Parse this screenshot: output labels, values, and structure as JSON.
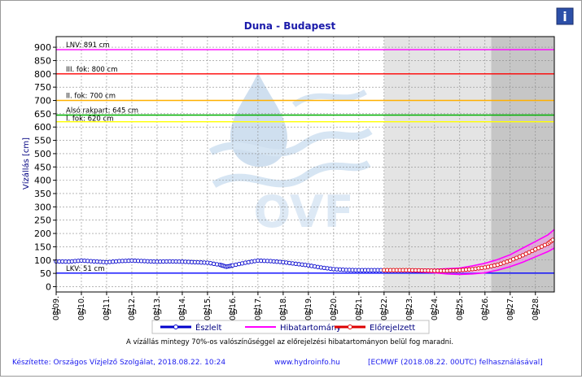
{
  "chart_data": {
    "type": "line",
    "title": "Duna - Budapest",
    "ylabel": "Vízállás [cm]",
    "xlabel": "",
    "ylim": [
      -20,
      940
    ],
    "yticks": [
      0,
      50,
      100,
      150,
      200,
      250,
      300,
      350,
      400,
      450,
      500,
      550,
      600,
      650,
      700,
      750,
      800,
      850,
      900
    ],
    "x_range": [
      0,
      19.75
    ],
    "x_ticks": [
      {
        "date": "08.09.",
        "time": "7h"
      },
      {
        "date": "08.10.",
        "time": "7h"
      },
      {
        "date": "08.11.",
        "time": "7h"
      },
      {
        "date": "08.12.",
        "time": "7h"
      },
      {
        "date": "08.13.",
        "time": "7h"
      },
      {
        "date": "08.14.",
        "time": "7h"
      },
      {
        "date": "08.15.",
        "time": "7h"
      },
      {
        "date": "08.16.",
        "time": "7h"
      },
      {
        "date": "08.17.",
        "time": "7h"
      },
      {
        "date": "08.18.",
        "time": "7h"
      },
      {
        "date": "08.19.",
        "time": "7h"
      },
      {
        "date": "08.20.",
        "time": "7h"
      },
      {
        "date": "08.21.",
        "time": "7h"
      },
      {
        "date": "08.22.",
        "time": "7h"
      },
      {
        "date": "08.23.",
        "time": "7h"
      },
      {
        "date": "08.24.",
        "time": "7h"
      },
      {
        "date": "08.25.",
        "time": "7h"
      },
      {
        "date": "08.26.",
        "time": "7h"
      },
      {
        "date": "08.27.",
        "time": "7h"
      },
      {
        "date": "08.28.",
        "time": "7h"
      }
    ],
    "grid": true,
    "forecast_region_start": 13.0,
    "far_forecast_region_start": 17.25,
    "reference_lines": [
      {
        "label": "LNV: 891 cm",
        "value": 891,
        "color": "#ff00ff"
      },
      {
        "label": "III. fok: 800 cm",
        "value": 800,
        "color": "#ff0000"
      },
      {
        "label": "II. fok: 700 cm",
        "value": 700,
        "color": "#ffb000"
      },
      {
        "label": "Alsó rakpart: 645 cm",
        "value": 645,
        "color": "#00b000"
      },
      {
        "label": "I. fok: 620 cm",
        "value": 620,
        "color": "#ffff00"
      },
      {
        "label": "LKV: 51 cm",
        "value": 51,
        "color": "#0000ff"
      }
    ],
    "series": [
      {
        "name": "Észlelt",
        "color": "#0000cc",
        "x": [
          0,
          0.5,
          1,
          1.5,
          2,
          2.5,
          3,
          3.5,
          4,
          4.5,
          5,
          5.5,
          6,
          6.5,
          6.75,
          7,
          7.5,
          8,
          8.5,
          9,
          9.5,
          10,
          10.5,
          11,
          11.5,
          12,
          12.5,
          13
        ],
        "values": [
          95,
          94,
          98,
          95,
          92,
          96,
          98,
          96,
          94,
          95,
          94,
          92,
          90,
          82,
          75,
          80,
          90,
          98,
          96,
          92,
          86,
          80,
          72,
          66,
          63,
          62,
          62,
          62
        ]
      },
      {
        "name": "Hibatartomány",
        "color": "#ff00ff",
        "upper": {
          "x": [
            13,
            14,
            15,
            16,
            16.5,
            17,
            17.5,
            18,
            18.5,
            19,
            19.5,
            19.75
          ],
          "values": [
            65,
            66,
            65,
            70,
            78,
            88,
            102,
            120,
            145,
            170,
            195,
            215
          ]
        },
        "lower": {
          "x": [
            13,
            14,
            15,
            15.5,
            16,
            16.5,
            17,
            17.5,
            18,
            18.5,
            19,
            19.5,
            19.75
          ],
          "values": [
            58,
            57,
            52,
            48,
            46,
            48,
            52,
            62,
            75,
            92,
            112,
            132,
            145
          ]
        }
      },
      {
        "name": "Előrejelzett",
        "color": "#dd0000",
        "x": [
          13,
          13.5,
          14,
          14.5,
          15,
          15.5,
          16,
          16.5,
          17,
          17.5,
          18,
          18.5,
          19,
          19.5,
          19.75
        ],
        "values": [
          62,
          62,
          62,
          61,
          60,
          60,
          62,
          66,
          72,
          82,
          98,
          118,
          140,
          162,
          180
        ]
      }
    ]
  },
  "footer": {
    "note": "A vízállás mintegy 70%-os valószínűséggel az előrejelzési hibatartományon belül fog maradni.",
    "credit": "Készítette: Országos Vízjelző Szolgálat, 2018.08.22. 10:24",
    "website": "www.hydroinfo.hu",
    "model": "[ECMWF (2018.08.22. 00UTC) felhasználásával]"
  },
  "watermark": "OVF",
  "info_icon": "info-icon",
  "info_label": "i"
}
